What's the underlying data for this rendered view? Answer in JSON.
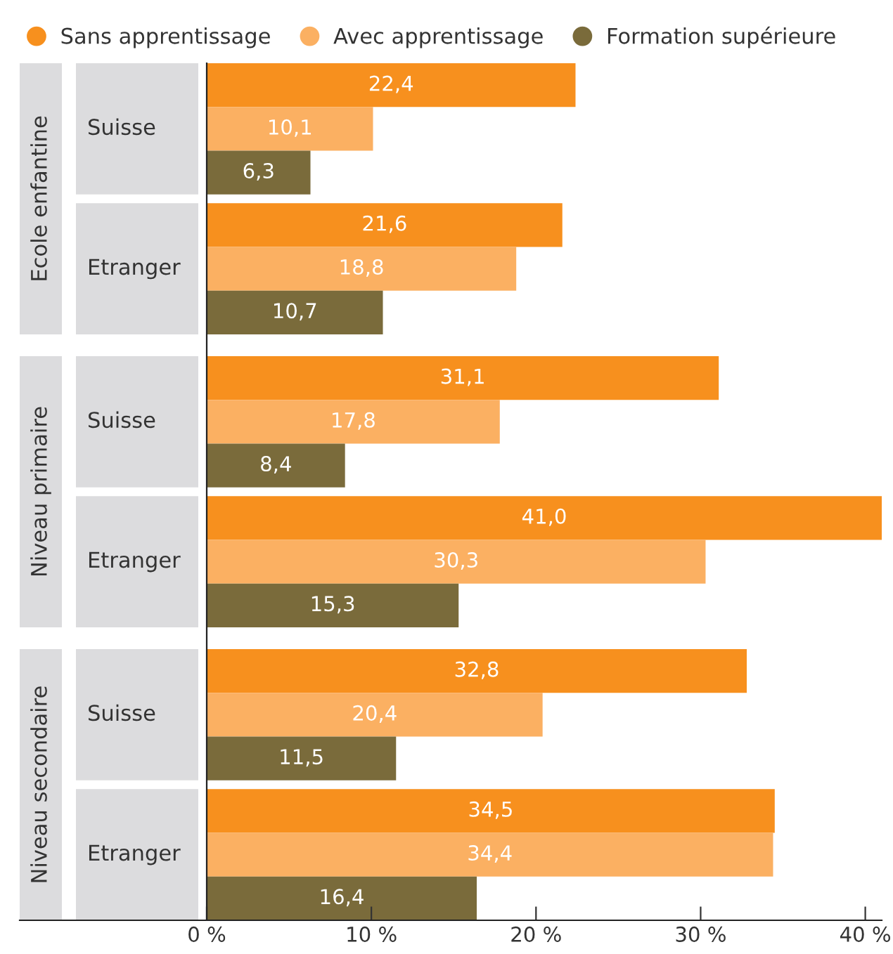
{
  "chart_data": {
    "type": "bar",
    "orientation": "horizontal",
    "categories": [
      "Suisse",
      "Etranger",
      "Suisse",
      "Etranger",
      "Suisse",
      "Etranger"
    ],
    "annotations": [
      "Ecole enfantine",
      "Niveau primaire",
      "Niveau secondaire"
    ],
    "series": [
      {
        "name": "Sans apprentissage",
        "color": "#f7901e",
        "values": [
          22.4,
          21.6,
          31.1,
          41.0,
          32.8,
          34.5
        ],
        "value_labels": [
          "22,4",
          "21,6",
          "31,1",
          "41,0",
          "32,8",
          "34,5"
        ]
      },
      {
        "name": "Avec apprentissage",
        "color": "#fbb062",
        "values": [
          10.1,
          18.8,
          17.8,
          30.3,
          20.4,
          34.4
        ],
        "value_labels": [
          "10,1",
          "18,8",
          "17,8",
          "30,3",
          "20,4",
          "34,4"
        ]
      },
      {
        "name": "Formation supérieure",
        "color": "#7a6b3b",
        "values": [
          6.3,
          10.7,
          8.4,
          15.3,
          11.5,
          16.4
        ],
        "value_labels": [
          "6,3",
          "10,7",
          "8,4",
          "15,3",
          "11,5",
          "16,4"
        ]
      }
    ],
    "xlim": [
      0,
      41
    ],
    "xticks": [
      {
        "value": 0,
        "label": "0 %"
      },
      {
        "value": 10,
        "label": "10 %"
      },
      {
        "value": 20,
        "label": "20 %"
      },
      {
        "value": 30,
        "label": "30 %"
      },
      {
        "value": 40,
        "label": "40 %"
      }
    ],
    "legend": "top",
    "grid": false
  }
}
